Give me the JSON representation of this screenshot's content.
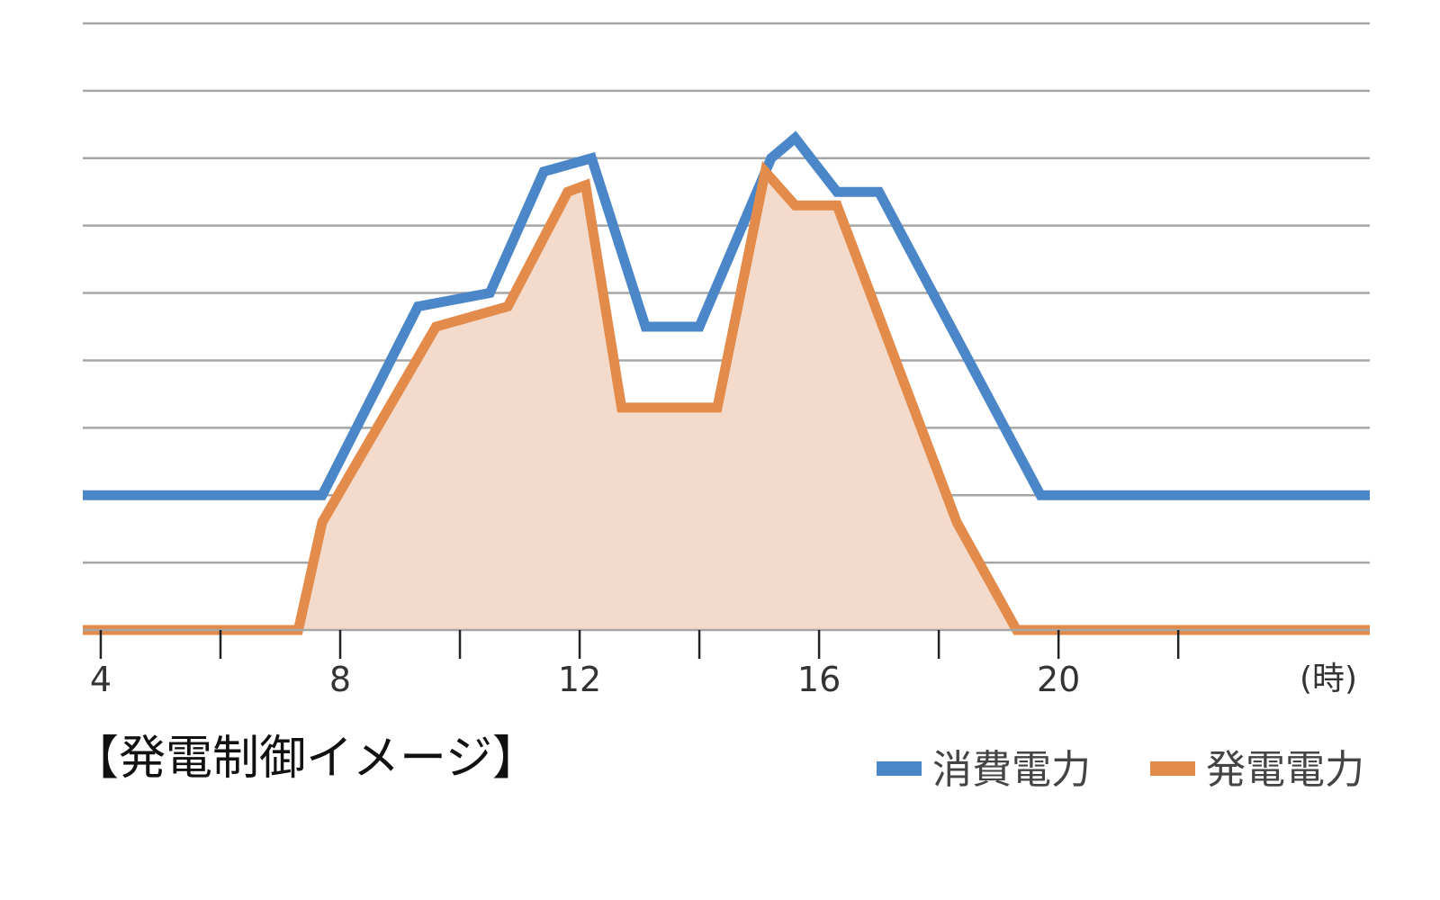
{
  "chart_data": {
    "type": "area",
    "title": "【発電制御イメージ】",
    "xlabel": "",
    "x_unit_label": "(時)",
    "ylabel": "",
    "x_ticks": [
      4,
      6,
      8,
      10,
      12,
      14,
      16,
      18,
      20,
      22
    ],
    "x_tick_labels": [
      "4",
      "",
      "8",
      "",
      "12",
      "",
      "16",
      "",
      "20",
      ""
    ],
    "xlim": [
      3.7,
      25.2
    ],
    "ylim": [
      0,
      9
    ],
    "y_gridlines": [
      1,
      2,
      3,
      4,
      5,
      6,
      7,
      8,
      9
    ],
    "grid": true,
    "legend_position": "bottom-right",
    "series": [
      {
        "name": "消費電力",
        "color": "#4a86c8",
        "fill": false,
        "x": [
          3.7,
          7.7,
          9.3,
          10.5,
          11.4,
          12.2,
          13.1,
          14.0,
          15.2,
          15.6,
          16.3,
          17.0,
          19.7,
          25.2
        ],
        "y": [
          2.0,
          2.0,
          4.8,
          5.0,
          6.8,
          7.0,
          4.5,
          4.5,
          7.0,
          7.3,
          6.5,
          6.5,
          2.0,
          2.0
        ]
      },
      {
        "name": "発電電力",
        "color": "#e38b4a",
        "fill": true,
        "fill_color": "#f3dacb",
        "x": [
          3.7,
          7.3,
          7.7,
          9.6,
          10.8,
          11.8,
          12.1,
          12.7,
          14.3,
          15.1,
          15.6,
          16.3,
          18.3,
          19.3,
          25.2
        ],
        "y": [
          0.0,
          0.0,
          1.6,
          4.5,
          4.8,
          6.5,
          6.6,
          3.3,
          3.3,
          6.8,
          6.3,
          6.3,
          1.6,
          0.0,
          0.0
        ]
      }
    ]
  }
}
